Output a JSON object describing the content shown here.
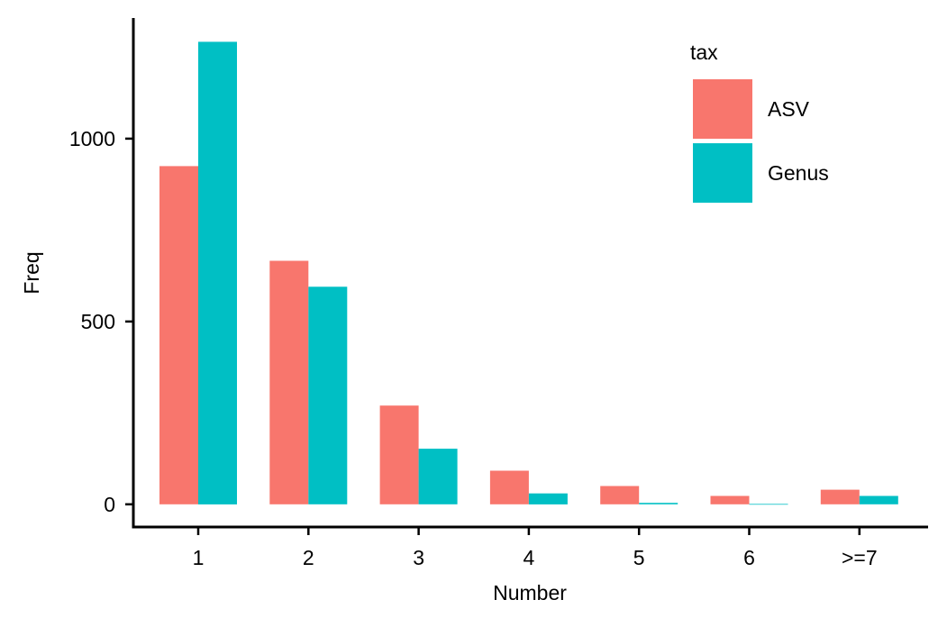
{
  "chart_data": {
    "type": "bar",
    "categories": [
      "1",
      "2",
      "3",
      "4",
      "5",
      "6",
      ">=7"
    ],
    "series": [
      {
        "name": "ASV",
        "color": "#F8766D",
        "values": [
          925,
          666,
          270,
          92,
          50,
          23,
          40
        ]
      },
      {
        "name": "Genus",
        "color": "#00BFC4",
        "values": [
          1265,
          595,
          152,
          30,
          4,
          1,
          23
        ]
      }
    ],
    "xlabel": "Number",
    "ylabel": "Freq",
    "yticks": [
      0,
      500,
      1000
    ],
    "ylim": [
      -62,
      1330
    ],
    "grid": false,
    "legend": {
      "title": "tax",
      "position": "top-right"
    }
  }
}
